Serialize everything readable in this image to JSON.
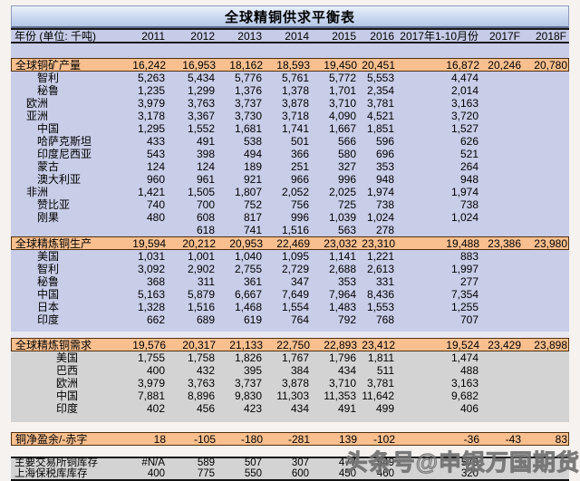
{
  "title": "全球精铜供求平衡表",
  "watermark": "头条号@申银万国期货",
  "colors": {
    "title_bar": "#cfdcf2",
    "column_header_bg": "#c6cbe7",
    "section_header_bg": "#f9bf8e",
    "data_blue_bg": "#c8cde8",
    "data_gray_bg": "#d3d3d3",
    "section_border": "#53300e"
  },
  "columns": {
    "label": "年份 (单位: 千吨)",
    "years": [
      "2011",
      "2012",
      "2013",
      "2014",
      "2015",
      "2016",
      "2017年1-10月份",
      "2017F",
      "2018F"
    ]
  },
  "table": {
    "sections": [
      {
        "id": "mine-production",
        "bg": "blue",
        "header": {
          "label": "全球铜矿产量",
          "values": [
            "16,242",
            "16,953",
            "18,162",
            "18,593",
            "19,450",
            "20,451",
            "16,872",
            "20,246",
            "20,780"
          ]
        },
        "rows": [
          {
            "label": "智利",
            "indent": 2,
            "values": [
              "5,263",
              "5,434",
              "5,776",
              "5,761",
              "5,772",
              "5,553",
              "4,474",
              "",
              ""
            ]
          },
          {
            "label": "秘鲁",
            "indent": 2,
            "values": [
              "1,235",
              "1,299",
              "1,376",
              "1,378",
              "1,701",
              "2,354",
              "2,014",
              "",
              ""
            ]
          },
          {
            "label": "欧洲",
            "indent": 1,
            "values": [
              "3,979",
              "3,763",
              "3,737",
              "3,878",
              "3,710",
              "3,781",
              "3,163",
              "",
              ""
            ]
          },
          {
            "label": "亚洲",
            "indent": 1,
            "values": [
              "3,178",
              "3,367",
              "3,730",
              "3,718",
              "4,090",
              "4,521",
              "3,720",
              "",
              ""
            ]
          },
          {
            "label": "中国",
            "indent": 2,
            "values": [
              "1,295",
              "1,552",
              "1,681",
              "1,741",
              "1,667",
              "1,851",
              "1,527",
              "",
              ""
            ]
          },
          {
            "label": "哈萨克斯坦",
            "indent": 2,
            "values": [
              "433",
              "491",
              "538",
              "501",
              "566",
              "596",
              "626",
              "",
              ""
            ]
          },
          {
            "label": "印度尼西亚",
            "indent": 2,
            "values": [
              "543",
              "398",
              "494",
              "366",
              "580",
              "696",
              "521",
              "",
              ""
            ]
          },
          {
            "label": "蒙古",
            "indent": 2,
            "values": [
              "124",
              "124",
              "189",
              "251",
              "327",
              "353",
              "264",
              "",
              ""
            ]
          },
          {
            "label": "澳大利亚",
            "indent": 2,
            "values": [
              "960",
              "961",
              "921",
              "966",
              "996",
              "948",
              "948",
              "",
              ""
            ]
          },
          {
            "label": "非洲",
            "indent": 1,
            "values": [
              "1,421",
              "1,505",
              "1,807",
              "2,052",
              "2,025",
              "1,974",
              "1,974",
              "",
              ""
            ]
          },
          {
            "label": "赞比亚",
            "indent": 2,
            "values": [
              "740",
              "700",
              "752",
              "756",
              "725",
              "738",
              "738",
              "",
              ""
            ]
          },
          {
            "label": "刚果",
            "indent": 2,
            "values": [
              "480",
              "608",
              "817",
              "996",
              "1,039",
              "1,024",
              "1,024",
              "",
              ""
            ]
          },
          {
            "label": "",
            "indent": 2,
            "values": [
              "",
              "618",
              "741",
              "1,516",
              "563",
              "278",
              "",
              "",
              ""
            ]
          }
        ]
      },
      {
        "id": "refined-production",
        "bg": "blue",
        "header": {
          "label": "全球精炼铜生产",
          "values": [
            "19,594",
            "20,212",
            "20,953",
            "22,469",
            "23,032",
            "23,310",
            "19,488",
            "23,386",
            "23,980"
          ]
        },
        "rows": [
          {
            "label": "美国",
            "indent": 2,
            "values": [
              "1,031",
              "1,001",
              "1,040",
              "1,095",
              "1,141",
              "1,221",
              "883",
              "",
              ""
            ]
          },
          {
            "label": "智利",
            "indent": 2,
            "values": [
              "3,092",
              "2,902",
              "2,755",
              "2,729",
              "2,688",
              "2,613",
              "1,997",
              "",
              ""
            ]
          },
          {
            "label": "秘鲁",
            "indent": 2,
            "values": [
              "368",
              "311",
              "361",
              "347",
              "353",
              "331",
              "277",
              "",
              ""
            ]
          },
          {
            "label": "中国",
            "indent": 2,
            "values": [
              "5,163",
              "5,879",
              "6,667",
              "7,649",
              "7,964",
              "8,436",
              "7,354",
              "",
              ""
            ]
          },
          {
            "label": "日本",
            "indent": 2,
            "values": [
              "1,328",
              "1,516",
              "1,468",
              "1,554",
              "1,483",
              "1,553",
              "1,255",
              "",
              ""
            ]
          },
          {
            "label": "印度",
            "indent": 2,
            "values": [
              "662",
              "689",
              "619",
              "764",
              "792",
              "768",
              "707",
              "",
              ""
            ]
          }
        ]
      },
      {
        "id": "refined-demand",
        "bg": "gray",
        "header": {
          "label": "全球精炼铜需求",
          "values": [
            "19,576",
            "20,317",
            "21,133",
            "22,750",
            "22,893",
            "23,412",
            "19,524",
            "23,429",
            "23,898"
          ]
        },
        "rows": [
          {
            "label": "美国",
            "indent": 3,
            "values": [
              "1,755",
              "1,758",
              "1,826",
              "1,767",
              "1,796",
              "1,811",
              "1,474",
              "",
              ""
            ]
          },
          {
            "label": "巴西",
            "indent": 3,
            "values": [
              "400",
              "432",
              "395",
              "384",
              "434",
              "511",
              "488",
              "",
              ""
            ]
          },
          {
            "label": "欧洲",
            "indent": 3,
            "values": [
              "3,979",
              "3,763",
              "3,737",
              "3,878",
              "3,710",
              "3,781",
              "3,163",
              "",
              ""
            ]
          },
          {
            "label": "中国",
            "indent": 3,
            "values": [
              "7,881",
              "8,896",
              "9,830",
              "11,303",
              "11,353",
              "11,642",
              "9,682",
              "",
              ""
            ]
          },
          {
            "label": "印度",
            "indent": 3,
            "values": [
              "402",
              "456",
              "423",
              "434",
              "491",
              "499",
              "406",
              "",
              ""
            ]
          }
        ]
      }
    ]
  },
  "net_row": {
    "label": "铜净盈余/-赤字",
    "values": [
      "18",
      "-105",
      "-180",
      "-281",
      "139",
      "-102",
      "-36",
      "-43",
      "83"
    ]
  },
  "inventory": {
    "rows": [
      {
        "label": "主要交易所铜库存",
        "indent": 0,
        "values": [
          "#N/A",
          "589",
          "507",
          "307",
          "477",
          "549",
          "579",
          "",
          ""
        ]
      },
      {
        "label": "上海保税库库存",
        "indent": 0,
        "values": [
          "400",
          "775",
          "550",
          "600",
          "450",
          "460",
          "320",
          "",
          ""
        ]
      }
    ]
  }
}
